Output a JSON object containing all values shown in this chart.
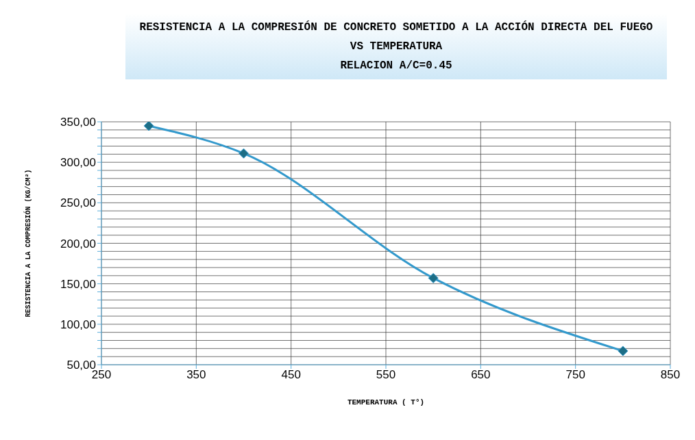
{
  "chart_data": {
    "type": "line",
    "title": "RESISTENCIA A LA COMPRESIÓN DE CONCRETO SOMETIDO A LA ACCIÓN DIRECTA DEL FUEGO VS TEMPERATURA",
    "subtitle": "RELACION A/C=0.45",
    "xlabel": "TEMPERATURA ( T°)",
    "ylabel": "RESISTENCIA A LA COMPRESIÓN (KG/CM²)",
    "x": [
      300,
      400,
      600,
      800
    ],
    "series": [
      {
        "color": "#3399cc",
        "values": [
          345,
          311,
          157,
          67
        ]
      }
    ],
    "xlim": [
      250,
      850
    ],
    "xticks": [
      250,
      350,
      450,
      550,
      650,
      750,
      850
    ],
    "ylim": [
      50,
      350
    ],
    "yticks": [
      {
        "value": 50,
        "label": "50,00"
      },
      {
        "value": 60,
        "label": null
      },
      {
        "value": 70,
        "label": null
      },
      {
        "value": 80,
        "label": null
      },
      {
        "value": 90,
        "label": null
      },
      {
        "value": 100,
        "label": "100,00"
      },
      {
        "value": 110,
        "label": null
      },
      {
        "value": 120,
        "label": null
      },
      {
        "value": 130,
        "label": null
      },
      {
        "value": 140,
        "label": null
      },
      {
        "value": 150,
        "label": "150,00"
      },
      {
        "value": 160,
        "label": null
      },
      {
        "value": 170,
        "label": null
      },
      {
        "value": 180,
        "label": null
      },
      {
        "value": 190,
        "label": null
      },
      {
        "value": 200,
        "label": "200,00"
      },
      {
        "value": 210,
        "label": null
      },
      {
        "value": 220,
        "label": null
      },
      {
        "value": 230,
        "label": null
      },
      {
        "value": 240,
        "label": null
      },
      {
        "value": 250,
        "label": "250,00"
      },
      {
        "value": 260,
        "label": null
      },
      {
        "value": 270,
        "label": null
      },
      {
        "value": 280,
        "label": null
      },
      {
        "value": 290,
        "label": null
      },
      {
        "value": 300,
        "label": "300,00"
      },
      {
        "value": 310,
        "label": null
      },
      {
        "value": 320,
        "label": null
      },
      {
        "value": 330,
        "label": null
      },
      {
        "value": 340,
        "label": null
      },
      {
        "value": 350,
        "label": "350,00"
      }
    ],
    "grid": true,
    "marker": "diamond",
    "line_style": "solid",
    "legend": false
  }
}
